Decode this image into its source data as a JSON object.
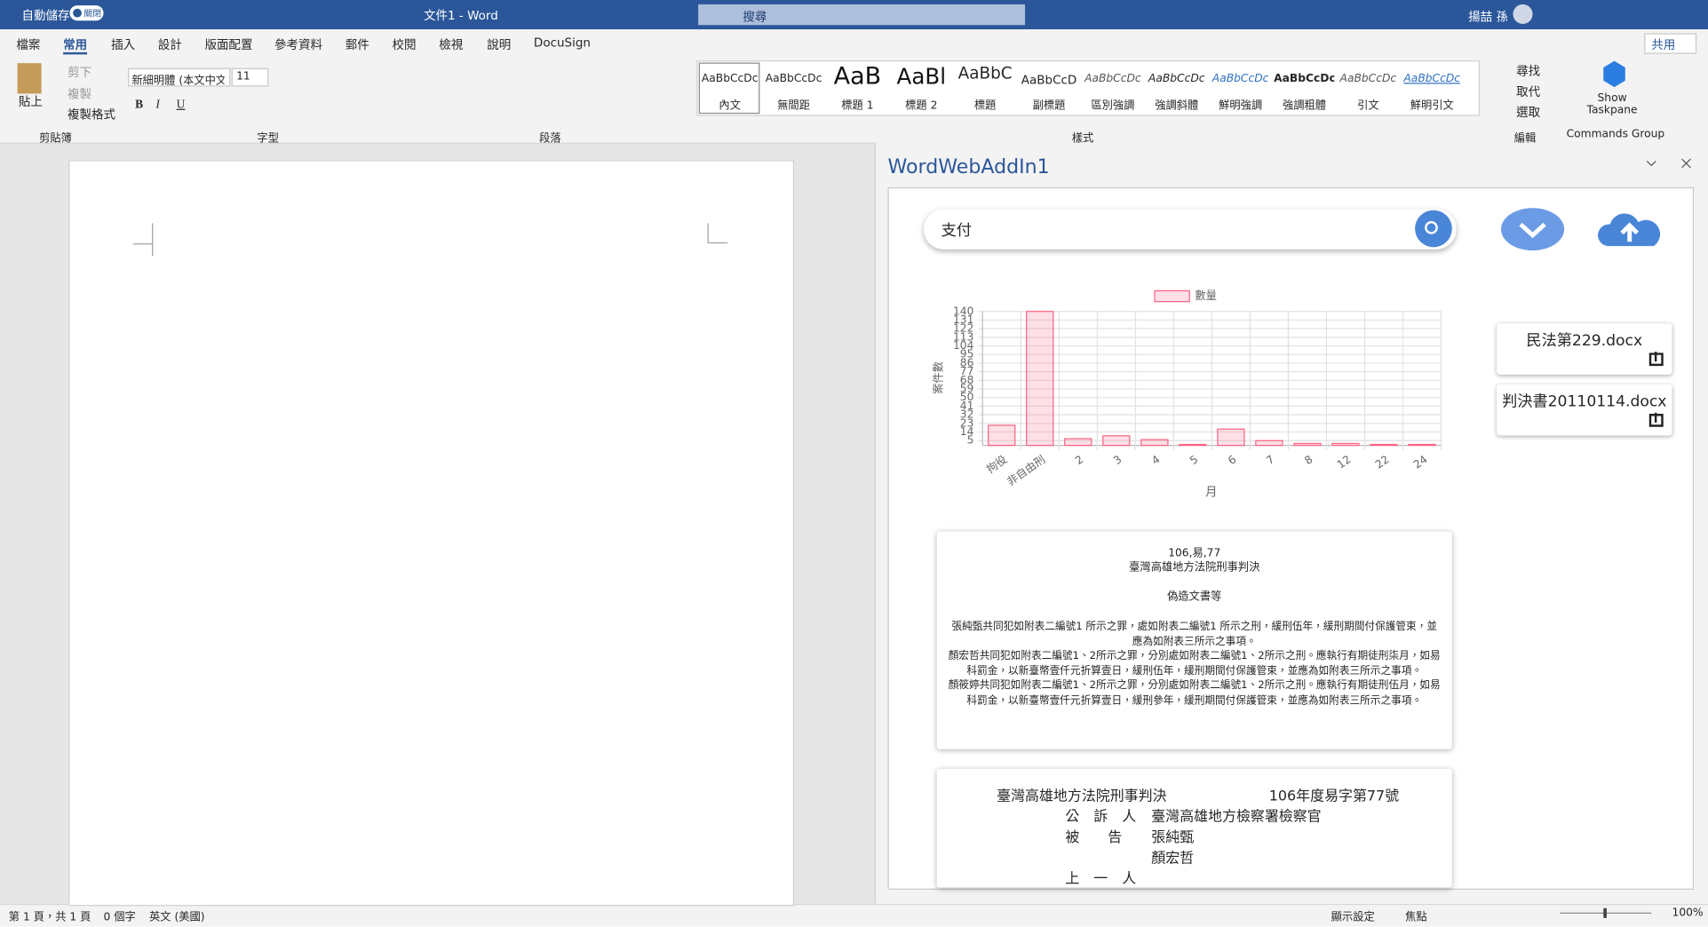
{
  "titlebar": {
    "autosave": "自動儲存",
    "toggle": "關閉",
    "doc_title": "文件1 - Word",
    "search": "搜尋",
    "user": "揚喆 孫"
  },
  "tabs": [
    "檔案",
    "常用",
    "插入",
    "設計",
    "版面配置",
    "參考資料",
    "郵件",
    "校閱",
    "檢視",
    "說明",
    "DocuSign"
  ],
  "share": "共用",
  "ribbon": {
    "clipboard": {
      "paste": "貼上",
      "cut": "剪下",
      "copy": "複製",
      "format_painter": "複製格式",
      "label": "剪貼簿"
    },
    "font": {
      "name": "新細明體 (本文中文",
      "size": "11",
      "buttons": [
        "B",
        "I",
        "U"
      ],
      "label": "字型"
    },
    "paragraph": {
      "label": "段落"
    },
    "styles": {
      "items": [
        {
          "preview": "AaBbCcDc",
          "name": "內文"
        },
        {
          "preview": "AaBbCcDc",
          "name": "無間距"
        },
        {
          "preview": "AaB",
          "name": "標題 1"
        },
        {
          "preview": "AaBl",
          "name": "標題 2"
        },
        {
          "preview": "AaBbC",
          "name": "標題"
        },
        {
          "preview": "AaBbCcD",
          "name": "副標題"
        },
        {
          "preview": "AaBbCcDc",
          "name": "區別強調"
        },
        {
          "preview": "AaBbCcDc",
          "name": "強調斜體"
        },
        {
          "preview": "AaBbCcDc",
          "name": "鮮明強調"
        },
        {
          "preview": "AaBbCcDc",
          "name": "強調粗體"
        },
        {
          "preview": "AaBbCcDc",
          "name": "引文"
        },
        {
          "preview": "AaBbCcDc",
          "name": "鮮明引文"
        }
      ],
      "label": "樣式"
    },
    "editing": {
      "find": "尋找",
      "replace": "取代",
      "select": "選取",
      "label": "編輯"
    },
    "commands": {
      "button": "Show Taskpane",
      "label": "Commands Group"
    }
  },
  "taskpane": {
    "title": "WordWebAddIn1",
    "search": "支付",
    "files": [
      "民法第229.docx",
      "判決書20110114.docx"
    ],
    "card1": {
      "case": "106,易,77",
      "court": "臺灣高雄地方法院刑事判決",
      "subject": "偽造文書等",
      "paragraphs": [
        "張純甄共同犯如附表二編號1 所示之罪，處如附表二編號1 所示之刑，緩刑伍年，緩刑期間付保護管束，並應為如附表三所示之事項。",
        "顏宏哲共同犯如附表二編號1、2所示之罪，分別處如附表二編號1、2所示之刑。應執行有期徒刑柒月，如易科罰金，以新臺幣壹仟元折算壹日，緩刑伍年，緩刑期間付保護管束，並應為如附表三所示之事項。",
        "顏筱婷共同犯如附表二編號1、2所示之罪，分別處如附表二編號1、2所示之刑。應執行有期徒刑伍月，如易科罰金，以新臺幣壹仟元折算壹日，緩刑參年，緩刑期間付保護管束，並應為如附表三所示之事項。"
      ]
    },
    "card2": {
      "court": "臺灣高雄地方法院刑事判決",
      "number": "106年度易字第77號",
      "rows": [
        [
          "公　訴　人",
          "臺灣高雄地方檢察署檢察官"
        ],
        [
          "被　　告",
          "張純甄"
        ],
        [
          "",
          "顏宏哲"
        ],
        [
          "上　一　人",
          ""
        ]
      ]
    }
  },
  "chart_data": {
    "type": "bar",
    "x_label": "月",
    "y_label": "案件數",
    "categories": [
      "拘役",
      "非自由刑",
      "2",
      "3",
      "4",
      "5",
      "6",
      "7",
      "8",
      "12",
      "22",
      "24"
    ],
    "series": [
      {
        "name": "數量",
        "color": "#ff6384",
        "values": [
          21,
          140,
          7,
          10,
          6,
          1,
          17,
          5,
          2,
          2,
          1,
          1
        ]
      }
    ],
    "ylim": [
      0,
      140
    ],
    "yticks": [
      5,
      14,
      23,
      32,
      41,
      50,
      59,
      68,
      77,
      86,
      95,
      104,
      113,
      122,
      131,
      140
    ],
    "grid": true,
    "legend": "top"
  },
  "status": {
    "page": "第 1 頁，共 1 頁",
    "words": "0 個字",
    "language": "英文 (美國)",
    "display": "顯示設定",
    "focus": "焦點",
    "zoom": "100%"
  }
}
